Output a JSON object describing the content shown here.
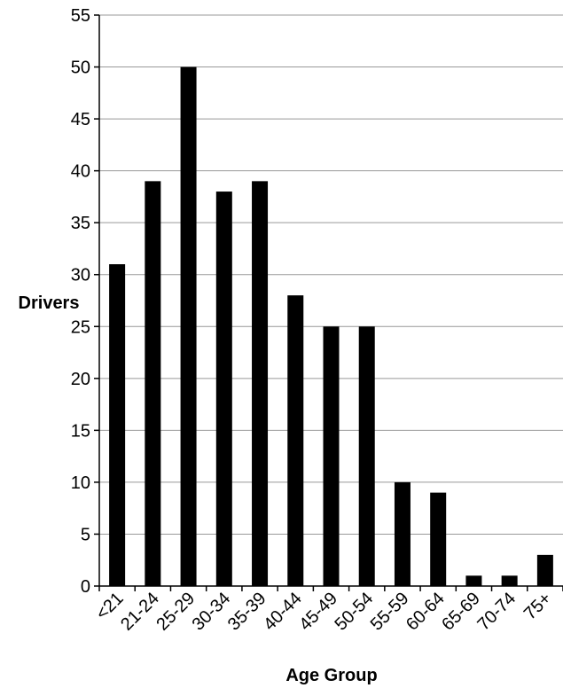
{
  "chart_data": {
    "type": "bar",
    "title": "",
    "xlabel": "Age Group",
    "ylabel": "Drivers",
    "categories": [
      "<21",
      "21-24",
      "25-29",
      "30-34",
      "35-39",
      "40-44",
      "45-49",
      "50-54",
      "55-59",
      "60-64",
      "65-69",
      "70-74",
      "75+"
    ],
    "values": [
      31,
      39,
      50,
      38,
      39,
      28,
      25,
      25,
      10,
      9,
      1,
      1,
      3
    ],
    "ylim": [
      0,
      55
    ],
    "yticks": [
      0,
      5,
      10,
      15,
      20,
      25,
      30,
      35,
      40,
      45,
      50,
      55
    ],
    "grid": true,
    "legend": "none",
    "colors": {
      "bar": "#000000",
      "grid": "#999999",
      "axis": "#000000",
      "background": "#ffffff"
    }
  }
}
